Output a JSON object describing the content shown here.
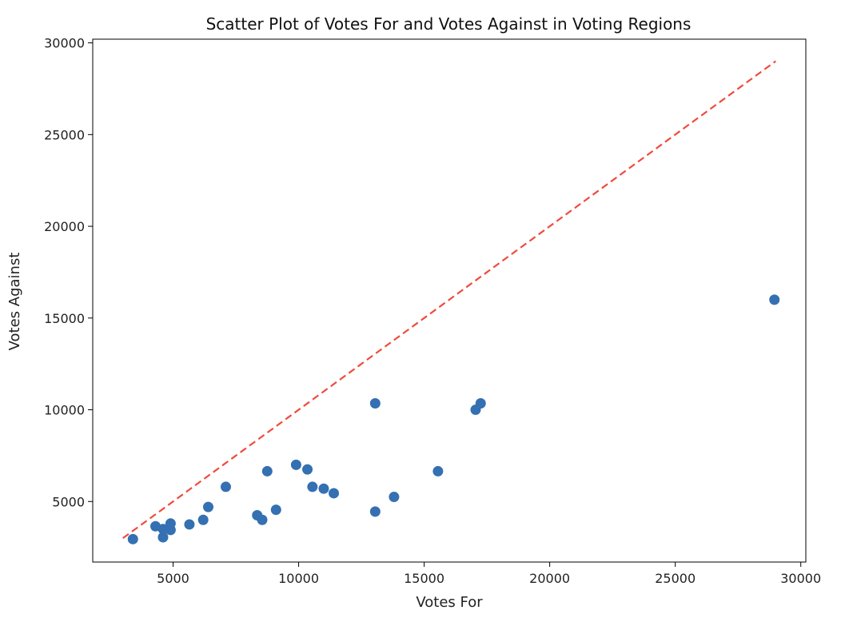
{
  "colors": {
    "points": "#3470b2",
    "reference_line": "#f04a3c",
    "axes": "#000000"
  },
  "chart_data": {
    "type": "scatter",
    "title": "Scatter Plot of Votes For and Votes Against in Voting Regions",
    "xlabel": "Votes For",
    "ylabel": "Votes Against",
    "xlim": [
      1800,
      30200
    ],
    "ylim": [
      1700,
      30200
    ],
    "xticks": [
      5000,
      10000,
      15000,
      20000,
      25000,
      30000
    ],
    "yticks": [
      5000,
      10000,
      15000,
      20000,
      25000,
      30000
    ],
    "grid": false,
    "reference_line": {
      "style": "dashed",
      "x": [
        3000,
        29000
      ],
      "y": [
        3000,
        29000
      ]
    },
    "points": [
      {
        "x": 3400,
        "y": 2950
      },
      {
        "x": 4300,
        "y": 3650
      },
      {
        "x": 4600,
        "y": 3050
      },
      {
        "x": 4600,
        "y": 3500
      },
      {
        "x": 4900,
        "y": 3450
      },
      {
        "x": 4900,
        "y": 3800
      },
      {
        "x": 5650,
        "y": 3750
      },
      {
        "x": 6200,
        "y": 4000
      },
      {
        "x": 6400,
        "y": 4700
      },
      {
        "x": 7100,
        "y": 5800
      },
      {
        "x": 8350,
        "y": 4250
      },
      {
        "x": 8550,
        "y": 4000
      },
      {
        "x": 8750,
        "y": 6650
      },
      {
        "x": 9100,
        "y": 4550
      },
      {
        "x": 9900,
        "y": 7000
      },
      {
        "x": 10350,
        "y": 6750
      },
      {
        "x": 10550,
        "y": 5800
      },
      {
        "x": 11000,
        "y": 5700
      },
      {
        "x": 11400,
        "y": 5450
      },
      {
        "x": 13050,
        "y": 10350
      },
      {
        "x": 13050,
        "y": 4450
      },
      {
        "x": 13800,
        "y": 5250
      },
      {
        "x": 15550,
        "y": 6650
      },
      {
        "x": 17050,
        "y": 10000
      },
      {
        "x": 17250,
        "y": 10350
      },
      {
        "x": 28950,
        "y": 16000
      }
    ]
  }
}
